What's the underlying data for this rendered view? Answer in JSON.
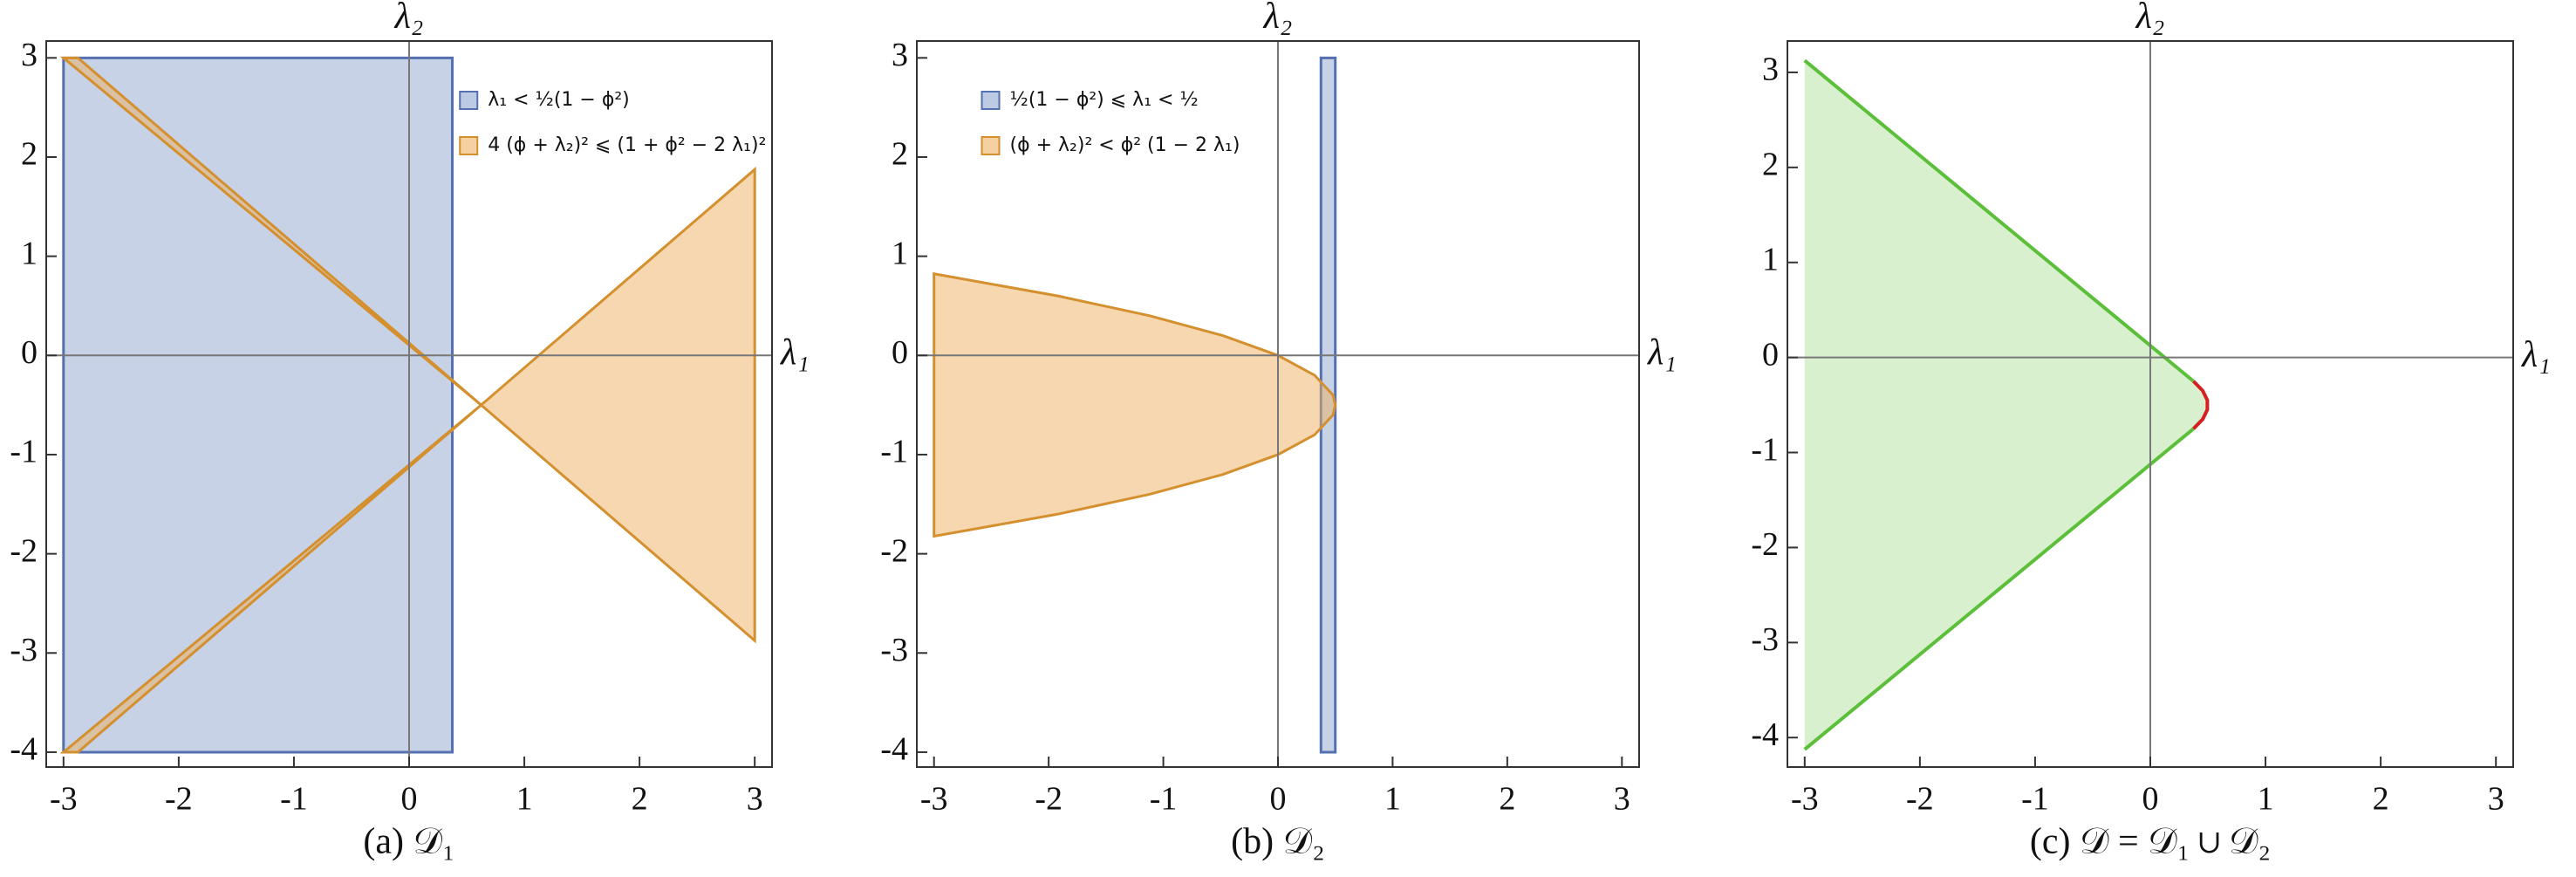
{
  "chart_data": [
    {
      "type": "region",
      "title": "(a) 𝒟₁",
      "x_label": "λ₁",
      "y_label": "λ₂",
      "xlim": [
        -3.15,
        3.15
      ],
      "ylim": [
        -4.15,
        3.17
      ],
      "xticks": [
        -3,
        -2,
        -1,
        0,
        1,
        2,
        3
      ],
      "yticks": [
        -4,
        -3,
        -2,
        -1,
        0,
        1,
        2,
        3
      ],
      "legend": "upper right",
      "series": [
        {
          "name": "λ₁ < ½(1 − ϕ²)",
          "color": "#5470b0",
          "fill": "#8fa6d0",
          "closed": true,
          "x": [
            -3,
            0.375,
            0.375,
            -3
          ],
          "values": [
            3,
            3,
            -4,
            -4
          ]
        },
        {
          "name": "4 (ϕ + λ₂)² ⩽ (1 + ϕ² − 2 λ₁)²",
          "color": "#d4902f",
          "fill": "#eeb060",
          "closed": true,
          "x": [
            -3,
            -2.875,
            0.625,
            -2.875,
            -3,
            0.625,
            3,
            3,
            0.625
          ],
          "values": [
            3,
            3,
            -0.5,
            -4,
            -4,
            -0.5,
            1.875,
            -2.875,
            -0.5
          ]
        }
      ]
    },
    {
      "type": "region",
      "title": "(b) 𝒟₂",
      "x_label": "λ₁",
      "y_label": "λ₂",
      "xlim": [
        -3.15,
        3.15
      ],
      "ylim": [
        -4.15,
        3.17
      ],
      "xticks": [
        -3,
        -2,
        -1,
        0,
        1,
        2,
        3
      ],
      "yticks": [
        -4,
        -3,
        -2,
        -1,
        0,
        1,
        2,
        3
      ],
      "legend": "upper left",
      "series": [
        {
          "name": "½(1 − ϕ²) ⩽ λ₁ < ½",
          "color": "#5470b0",
          "fill": "#8fa6d0",
          "closed": true,
          "x": [
            0.375,
            0.5,
            0.5,
            0.375
          ],
          "values": [
            3,
            3,
            -4,
            -4
          ]
        },
        {
          "name": "(ϕ + λ₂)² < ϕ² (1 − 2 λ₁)",
          "color": "#d4902f",
          "fill": "#eeb060",
          "closed": true,
          "x": [
            -3,
            -1.92,
            -1.12,
            -0.48,
            0,
            0.32,
            0.48,
            0.5,
            0.48,
            0.32,
            0,
            -0.48,
            -1.12,
            -1.92,
            -3
          ],
          "values": [
            0.823,
            0.6,
            0.4,
            0.2,
            0,
            -0.2,
            -0.4,
            -0.5,
            -0.6,
            -0.8,
            -1,
            -1.2,
            -1.4,
            -1.6,
            -1.823
          ]
        }
      ]
    },
    {
      "type": "region",
      "title": "(c) 𝒟 = 𝒟₁ ∪ 𝒟₂",
      "x_label": "λ₁",
      "y_label": "λ₂",
      "xlim": [
        -3.15,
        3.15
      ],
      "ylim": [
        -4.31,
        3.33
      ],
      "xticks": [
        -3,
        -2,
        -1,
        0,
        1,
        2,
        3
      ],
      "yticks": [
        -4,
        -3,
        -2,
        -1,
        0,
        1,
        2,
        3
      ],
      "series": [
        {
          "fill": "#b4e29e",
          "closed": true,
          "x": [
            -3,
            0.375,
            0.455,
            0.495,
            0.495,
            0.455,
            0.375,
            -3
          ],
          "values": [
            3.125,
            -0.25,
            -0.35,
            -0.45,
            -0.55,
            -0.65,
            -0.75,
            -4.125
          ]
        },
        {
          "color": "#5cbf3a",
          "closed": false,
          "x": [
            -3,
            0.375
          ],
          "values": [
            3.125,
            -0.25
          ]
        },
        {
          "color": "#5cbf3a",
          "closed": false,
          "x": [
            -3,
            0.375
          ],
          "values": [
            -4.125,
            -0.75
          ]
        },
        {
          "color": "#d42020",
          "closed": false,
          "x": [
            0.375,
            0.455,
            0.495,
            0.495,
            0.455,
            0.375
          ],
          "values": [
            -0.25,
            -0.35,
            -0.45,
            -0.55,
            -0.65,
            -0.75
          ]
        }
      ]
    }
  ]
}
